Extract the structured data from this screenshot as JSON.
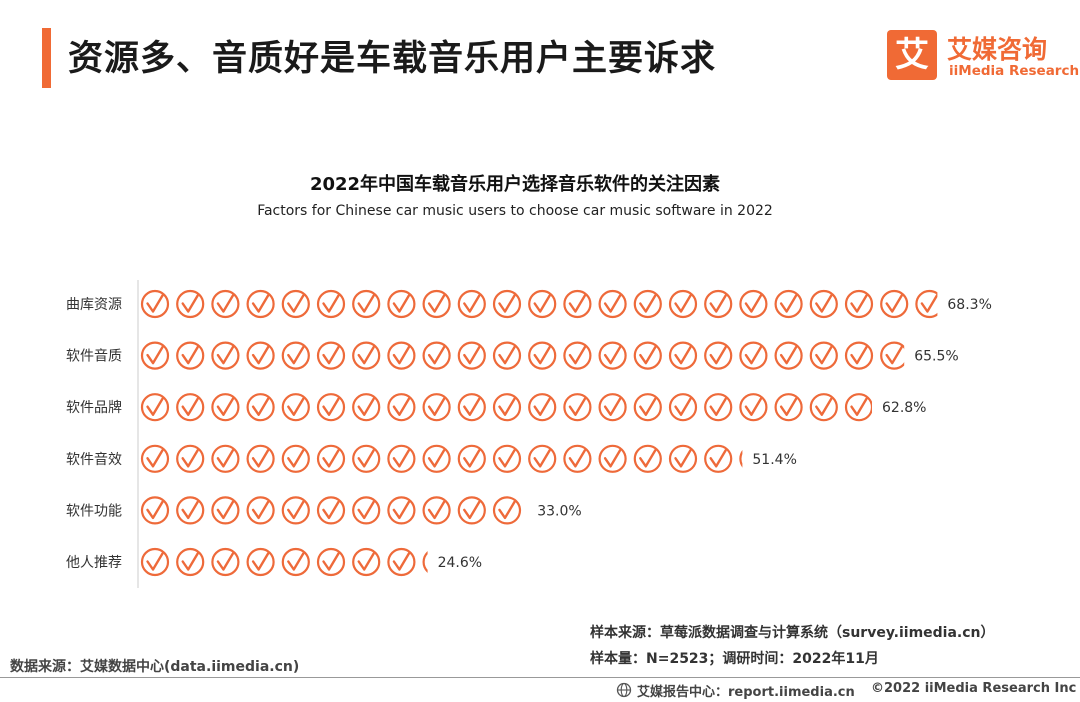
{
  "header": {
    "title": "资源多、音质好是车载音乐用户主要诉求",
    "logo_mark": "艾",
    "logo_cn": "艾媒咨询",
    "logo_en": "iiMedia Research"
  },
  "colors": {
    "accent": "#f06a35",
    "icon_stroke": "#ee6a3a",
    "axis": "#cccccc"
  },
  "icon_semantics": "check-circle-icon",
  "chart_data": {
    "type": "bar",
    "title": "2022年中国车载音乐用户选择音乐软件的关注因素",
    "subtitle": "Factors for Chinese car music users to choose car music software in 2022",
    "categories": [
      "曲库资源",
      "软件音质",
      "软件品牌",
      "软件音效",
      "软件功能",
      "他人推荐"
    ],
    "values": [
      68.3,
      65.5,
      62.8,
      51.4,
      33.0,
      24.6
    ],
    "value_labels": [
      "68.3%",
      "65.5%",
      "62.8%",
      "51.4%",
      "33.0%",
      "24.6%"
    ],
    "unit": "%",
    "icon_unit_value": 3,
    "xlim": [
      0,
      68.3
    ],
    "grid": false,
    "legend": "none"
  },
  "sources": {
    "sample_source": "样本来源：草莓派数据调查与计算系统（survey.iimedia.cn）",
    "sample_info": "样本量：N=2523；调研时间：2022年11月",
    "data_source": "数据来源：艾媒数据中心(data.iimedia.cn)"
  },
  "footer": {
    "report_center": "艾媒报告中心：report.iimedia.cn",
    "copyright": "©2022  iiMedia Research  Inc"
  }
}
